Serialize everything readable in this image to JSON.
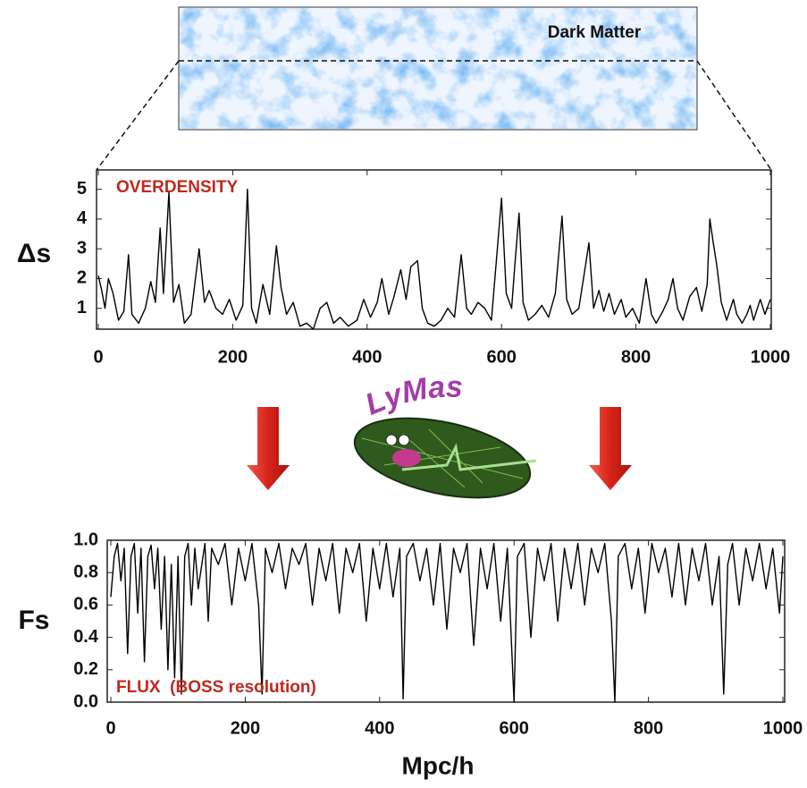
{
  "image_label": "Dark Matter",
  "logo_text": "LyMas",
  "chart_data": [
    {
      "type": "line",
      "annotation": "OVERDENSITY",
      "ylabel": "Δs",
      "color": "#000000",
      "xlim": [
        0,
        1000
      ],
      "xticks": [
        0,
        200,
        400,
        600,
        800,
        1000
      ],
      "ylim": [
        0.3,
        5.65
      ],
      "yticks": [
        1,
        2,
        3,
        4,
        5
      ],
      "x": [
        0,
        5,
        10,
        15,
        22,
        30,
        38,
        45,
        50,
        60,
        70,
        78,
        85,
        92,
        97,
        105,
        112,
        120,
        128,
        138,
        150,
        158,
        165,
        175,
        185,
        195,
        205,
        215,
        222,
        228,
        235,
        245,
        255,
        265,
        272,
        280,
        290,
        300,
        310,
        320,
        330,
        340,
        350,
        360,
        372,
        385,
        395,
        405,
        415,
        422,
        432,
        440,
        450,
        458,
        465,
        475,
        482,
        490,
        500,
        510,
        520,
        530,
        540,
        548,
        555,
        565,
        575,
        585,
        600,
        607,
        615,
        620,
        626,
        632,
        640,
        650,
        660,
        670,
        680,
        690,
        697,
        705,
        715,
        722,
        730,
        737,
        745,
        752,
        760,
        768,
        778,
        785,
        795,
        805,
        815,
        823,
        830,
        840,
        848,
        855,
        862,
        870,
        880,
        890,
        898,
        906,
        910,
        915,
        920,
        927,
        935,
        945,
        950,
        958,
        965,
        970,
        975,
        985,
        992,
        1000
      ],
      "values": [
        2.1,
        1.6,
        1.0,
        2.0,
        1.5,
        0.6,
        0.9,
        2.8,
        0.8,
        0.5,
        1.0,
        1.9,
        1.2,
        3.7,
        1.5,
        4.9,
        1.2,
        1.8,
        0.5,
        0.8,
        3.0,
        1.2,
        1.6,
        1.0,
        0.8,
        1.3,
        0.6,
        1.1,
        5.0,
        1.0,
        0.5,
        1.8,
        0.8,
        3.1,
        1.7,
        0.8,
        1.2,
        0.4,
        0.5,
        0.3,
        1.0,
        1.2,
        0.5,
        0.7,
        0.4,
        0.6,
        1.3,
        0.7,
        1.2,
        2.0,
        0.8,
        1.4,
        2.3,
        1.3,
        2.4,
        2.6,
        1.0,
        0.5,
        0.4,
        0.6,
        1.0,
        0.7,
        2.8,
        1.0,
        0.8,
        1.2,
        1.0,
        0.6,
        4.7,
        1.5,
        1.0,
        2.5,
        4.2,
        1.2,
        0.6,
        0.8,
        1.1,
        0.7,
        1.5,
        4.1,
        1.3,
        0.8,
        1.0,
        2.0,
        3.2,
        1.0,
        1.6,
        0.9,
        1.5,
        0.8,
        1.3,
        0.7,
        1.0,
        0.5,
        2.0,
        0.8,
        0.5,
        0.9,
        1.3,
        2.0,
        1.0,
        0.6,
        1.4,
        1.7,
        0.9,
        1.8,
        4.0,
        3.2,
        2.5,
        1.2,
        0.6,
        1.3,
        0.8,
        0.5,
        0.8,
        1.1,
        0.6,
        1.3,
        0.8,
        1.3
      ]
    },
    {
      "type": "line",
      "annotation": "FLUX  (BOSS resolution)",
      "ylabel": "Fs",
      "xlabel": "Mpc/h",
      "color": "#000000",
      "xlim": [
        0,
        1000
      ],
      "xticks": [
        0,
        200,
        400,
        600,
        800,
        1000
      ],
      "ylim": [
        0,
        1
      ],
      "yticks": [
        {
          "value": 0,
          "label": "0.0"
        },
        0.2,
        0.4,
        0.6,
        0.8,
        {
          "value": 1,
          "label": "1.0"
        }
      ],
      "x": [
        0,
        5,
        10,
        15,
        20,
        25,
        30,
        35,
        40,
        45,
        50,
        55,
        60,
        65,
        70,
        75,
        80,
        85,
        90,
        95,
        100,
        105,
        110,
        115,
        120,
        125,
        130,
        140,
        145,
        150,
        160,
        170,
        180,
        190,
        200,
        210,
        220,
        225,
        230,
        240,
        250,
        260,
        270,
        280,
        290,
        300,
        310,
        320,
        330,
        340,
        350,
        360,
        370,
        380,
        390,
        400,
        410,
        420,
        430,
        435,
        440,
        450,
        460,
        470,
        480,
        490,
        500,
        510,
        520,
        530,
        540,
        550,
        560,
        570,
        580,
        590,
        600,
        605,
        615,
        625,
        635,
        645,
        655,
        665,
        675,
        685,
        695,
        705,
        715,
        725,
        735,
        745,
        750,
        755,
        765,
        775,
        785,
        795,
        805,
        815,
        825,
        835,
        845,
        855,
        865,
        875,
        885,
        895,
        905,
        912,
        918,
        925,
        935,
        945,
        955,
        965,
        975,
        985,
        995,
        1000
      ],
      "values": [
        0.65,
        0.9,
        0.98,
        0.75,
        0.95,
        0.3,
        0.9,
        0.98,
        0.55,
        0.95,
        0.25,
        0.9,
        0.97,
        0.7,
        0.95,
        0.45,
        0.9,
        0.2,
        0.85,
        0.15,
        0.9,
        0.05,
        0.9,
        0.98,
        0.6,
        0.95,
        0.7,
        0.98,
        0.5,
        0.95,
        0.85,
        0.98,
        0.6,
        0.95,
        0.75,
        0.98,
        0.6,
        0.05,
        0.95,
        0.8,
        0.98,
        0.7,
        0.95,
        0.85,
        0.98,
        0.6,
        0.95,
        0.75,
        0.98,
        0.55,
        0.95,
        0.8,
        0.98,
        0.5,
        0.95,
        0.7,
        0.98,
        0.65,
        0.95,
        0.02,
        0.9,
        0.98,
        0.75,
        0.95,
        0.6,
        0.98,
        0.45,
        0.95,
        0.8,
        0.98,
        0.35,
        0.95,
        0.7,
        0.98,
        0.5,
        0.95,
        0,
        0.9,
        0.98,
        0.4,
        0.95,
        0.75,
        0.98,
        0.5,
        0.95,
        0.7,
        0.98,
        0.6,
        0.95,
        0.8,
        0.98,
        0.5,
        0,
        0.9,
        0.98,
        0.7,
        0.95,
        0.55,
        0.98,
        0.8,
        0.95,
        0.65,
        0.98,
        0.6,
        0.95,
        0.75,
        0.98,
        0.6,
        0.9,
        0.05,
        0.85,
        0.98,
        0.6,
        0.95,
        0.75,
        0.98,
        0.7,
        0.95,
        0.55,
        0.9
      ]
    }
  ]
}
